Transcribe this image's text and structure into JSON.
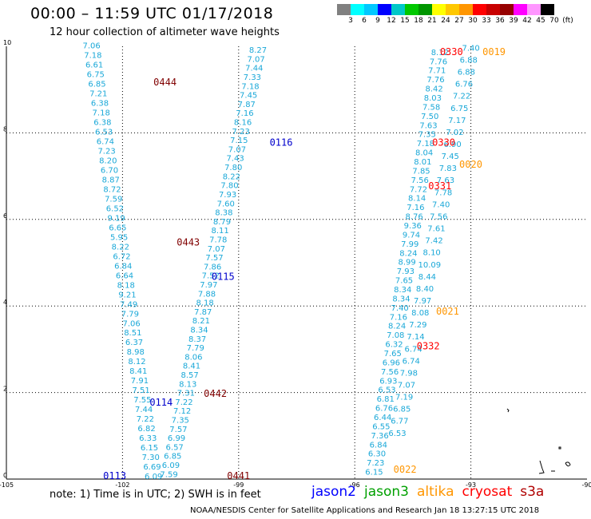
{
  "title": "00:00 – 11:59 UTC 01/17/2018",
  "subtitle": "12 hour collection of altimeter wave heights",
  "colorbar": {
    "colors": [
      "#808080",
      "#00ffff",
      "#00c8ff",
      "#0000ff",
      "#00c8c8",
      "#00c800",
      "#009600",
      "#ffff00",
      "#ffc800",
      "#ff9600",
      "#ff0000",
      "#c80000",
      "#960000",
      "#ff00ff",
      "#ff96ff",
      "#000000"
    ],
    "labels": [
      "3",
      "6",
      "9",
      "12",
      "15",
      "18",
      "21",
      "24",
      "27",
      "30",
      "33",
      "36",
      "39",
      "42",
      "45",
      "70",
      "(ft)"
    ]
  },
  "axes": {
    "x_ticks": [
      "-105",
      "-102",
      "-99",
      "-96",
      "-93",
      "-90"
    ],
    "y_ticks": [
      "0",
      "2",
      "4",
      "6",
      "8",
      "10"
    ]
  },
  "note": "note:  1) Time is in UTC;  2) SWH is in feet",
  "legend": [
    {
      "label": "jason2",
      "color": "#0000ff"
    },
    {
      "label": "jason3",
      "color": "#00a000"
    },
    {
      "label": "altika",
      "color": "#ff9600"
    },
    {
      "label": "cryosat",
      "color": "#ff0000"
    },
    {
      "label": "s3a",
      "color": "#b00000"
    }
  ],
  "credit": "NOAA/NESDIS Center for Satellite Applications and Research     Jan 18 13:27:15 UTC 2018",
  "passes": [
    {
      "id": "0444",
      "color": "#800000",
      "lon": -101.2,
      "lat": 9.1
    },
    {
      "id": "0443",
      "color": "#800000",
      "lon": -100.6,
      "lat": 5.4
    },
    {
      "id": "0442",
      "color": "#800000",
      "lon": -99.9,
      "lat": 1.9
    },
    {
      "id": "0441",
      "color": "#800000",
      "lon": -99.3,
      "lat": 0.0
    },
    {
      "id": "0116",
      "color": "#0000cc",
      "lon": -98.2,
      "lat": 7.7
    },
    {
      "id": "0115",
      "color": "#0000cc",
      "lon": -99.7,
      "lat": 4.6
    },
    {
      "id": "0114",
      "color": "#0000cc",
      "lon": -101.3,
      "lat": 1.7
    },
    {
      "id": "0113",
      "color": "#0000cc",
      "lon": -102.5,
      "lat": 0.0
    },
    {
      "id": "0330",
      "color": "#ff0000",
      "lon": -93.8,
      "lat": 9.8
    },
    {
      "id": "0330",
      "color": "#ff0000",
      "lon": -94.0,
      "lat": 7.7
    },
    {
      "id": "0331",
      "color": "#ff0000",
      "lon": -94.1,
      "lat": 6.7
    },
    {
      "id": "0332",
      "color": "#ff0000",
      "lon": -94.4,
      "lat": 3.0
    },
    {
      "id": "0019",
      "color": "#ff9600",
      "lon": -92.7,
      "lat": 9.8
    },
    {
      "id": "0020",
      "color": "#ff9600",
      "lon": -93.3,
      "lat": 7.2
    },
    {
      "id": "0021",
      "color": "#ff9600",
      "lon": -93.9,
      "lat": 3.8
    },
    {
      "id": "0022",
      "color": "#ff9600",
      "lon": -95.0,
      "lat": 0.15
    }
  ],
  "tracks": [
    {
      "name": "track-0444",
      "color": "#1aa8d8",
      "lon0": -102.8,
      "lat0": 9.95,
      "lon1": -101.2,
      "lat1": 0.0,
      "values": [
        "7.06",
        "7.18",
        "6.61",
        "6.75",
        "6.85",
        "7.21",
        "6.38",
        "7.18",
        "6.38",
        "6.53",
        "6.74",
        "7.23",
        "8.20",
        "6.70",
        "8.87",
        "8.72",
        "7.59",
        "6.52",
        "9.19",
        "6.65",
        "5.95",
        "8.22",
        "6.72",
        "6.84",
        "6.64",
        "8.18",
        "9.21",
        "7.49",
        "7.79",
        "7.06",
        "8.51",
        "6.37",
        "8.98",
        "8.12",
        "8.41",
        "7.91",
        "7.51",
        "7.55",
        "7.44",
        "7.22",
        "6.82",
        "6.33",
        "6.15",
        "7.30",
        "6.69",
        "6.09"
      ]
    },
    {
      "name": "track-0116",
      "color": "#1aa8d8",
      "lon0": -98.5,
      "lat0": 9.85,
      "lon1": -100.8,
      "lat1": 0.05,
      "values": [
        "8.27",
        "7.07",
        "7.44",
        "7.33",
        "7.18",
        "7.45",
        "7.87",
        "7.16",
        "8.16",
        "7.23",
        "7.15",
        "7.07",
        "7.43",
        "7.80",
        "8.22",
        "7.80",
        "7.93",
        "7.60",
        "8.38",
        "8.79",
        "8.11",
        "7.78",
        "7.07",
        "7.57",
        "7.86",
        "7.52",
        "7.97",
        "7.88",
        "8.18",
        "7.87",
        "8.21",
        "8.34",
        "8.37",
        "7.79",
        "8.06",
        "8.41",
        "8.57",
        "8.13",
        "7.31",
        "7.22",
        "7.12",
        "7.35",
        "7.57",
        "6.99",
        "6.57",
        "6.85",
        "6.09",
        "7.59"
      ]
    },
    {
      "name": "track-0330",
      "color": "#1aa8d8",
      "lon0": -93.8,
      "lat0": 9.8,
      "lon1": -95.5,
      "lat1": 0.1,
      "values": [
        "8.12",
        "7.76",
        "7.71",
        "7.76",
        "8.42",
        "8.03",
        "7.58",
        "7.50",
        "7.63",
        "7.35",
        "7.18",
        "8.04",
        "8.01",
        "7.85",
        "7.56",
        "7.72",
        "8.14",
        "7.16",
        "8.76",
        "9.36",
        "9.74",
        "7.99",
        "8.24",
        "8.99",
        "7.93",
        "7.65",
        "8.34",
        "8.34",
        "7.40",
        "7.16",
        "8.24",
        "7.08",
        "6.32",
        "7.65",
        "6.96",
        "7.56",
        "6.93",
        "6.53",
        "6.81",
        "6.76",
        "6.44",
        "6.55",
        "7.36",
        "6.84",
        "6.30",
        "7.23",
        "6.15"
      ]
    },
    {
      "name": "track-0019",
      "color": "#1aa8d8",
      "lon0": -93.0,
      "lat0": 9.9,
      "lon1": -94.9,
      "lat1": 1.0,
      "values": [
        "7.40",
        "6.88",
        "6.88",
        "6.76",
        "7.22",
        "6.75",
        "7.17",
        "7.02",
        "6.90",
        "7.45",
        "7.83",
        "7.63",
        "7.78",
        "7.40",
        "7.56",
        "7.61",
        "7.42",
        "8.10",
        "10.09",
        "8.44",
        "8.40",
        "7.97",
        "8.08",
        "7.29",
        "7.14",
        "6.74",
        "6.74",
        "7.98",
        "7.07",
        "7.19",
        "6.85",
        "6.77",
        "6.53"
      ]
    }
  ]
}
